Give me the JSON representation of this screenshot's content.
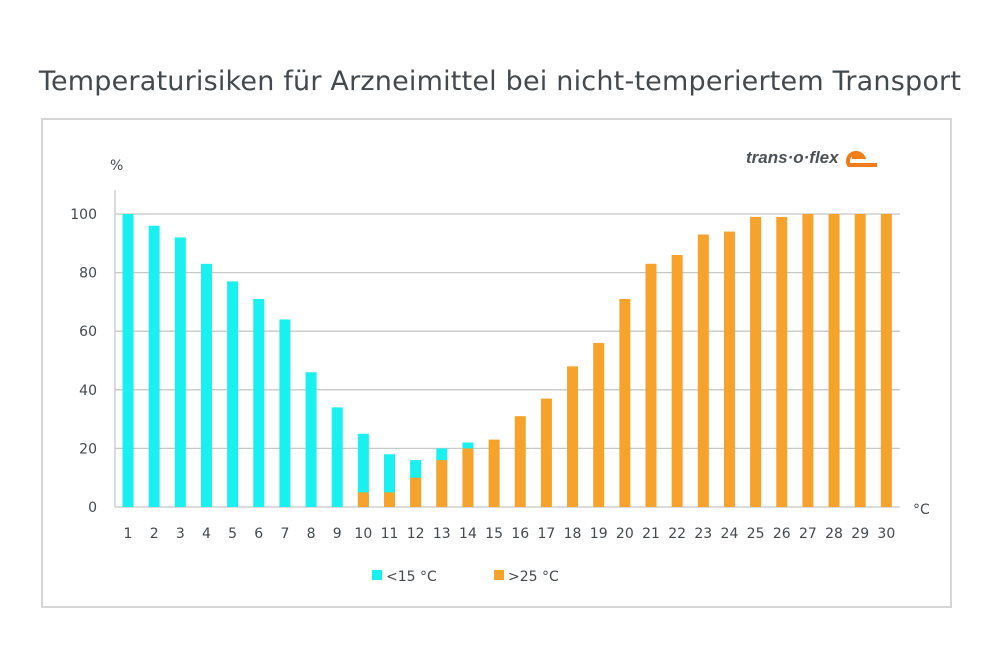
{
  "chart_data": {
    "type": "bar",
    "title": "Temperaturisiken für Arzneimittel bei nicht-temperiertem Transport",
    "xlabel": "°C",
    "ylabel": "%",
    "ylim": [
      0,
      100
    ],
    "yticks": [
      "0",
      "20",
      "40",
      "60",
      "80",
      "100"
    ],
    "grid": true,
    "legend_position": "bottom",
    "categories": [
      "1",
      "2",
      "3",
      "4",
      "5",
      "6",
      "7",
      "8",
      "9",
      "10",
      "11",
      "12",
      "13",
      "14",
      "15",
      "16",
      "17",
      "18",
      "19",
      "20",
      "21",
      "22",
      "23",
      "24",
      "25",
      "26",
      "27",
      "28",
      "29",
      "30"
    ],
    "series": [
      {
        "name": "<15 °C",
        "color": "#19f0f0",
        "values": [
          100,
          96,
          92,
          83,
          77,
          71,
          64,
          46,
          34,
          25,
          18,
          16,
          20,
          22,
          0,
          0,
          0,
          0,
          0,
          0,
          0,
          0,
          0,
          0,
          0,
          0,
          0,
          0,
          0,
          0
        ]
      },
      {
        "name": ">25 °C",
        "color": "#f7a22a",
        "values": [
          0,
          0,
          0,
          0,
          0,
          0,
          0,
          0,
          0,
          5,
          5,
          10,
          16,
          20,
          23,
          31,
          37,
          48,
          56,
          71,
          83,
          86,
          93,
          94,
          99,
          99,
          100,
          100,
          100,
          100
        ]
      }
    ]
  },
  "logo": {
    "text": "trans·o·flex"
  }
}
